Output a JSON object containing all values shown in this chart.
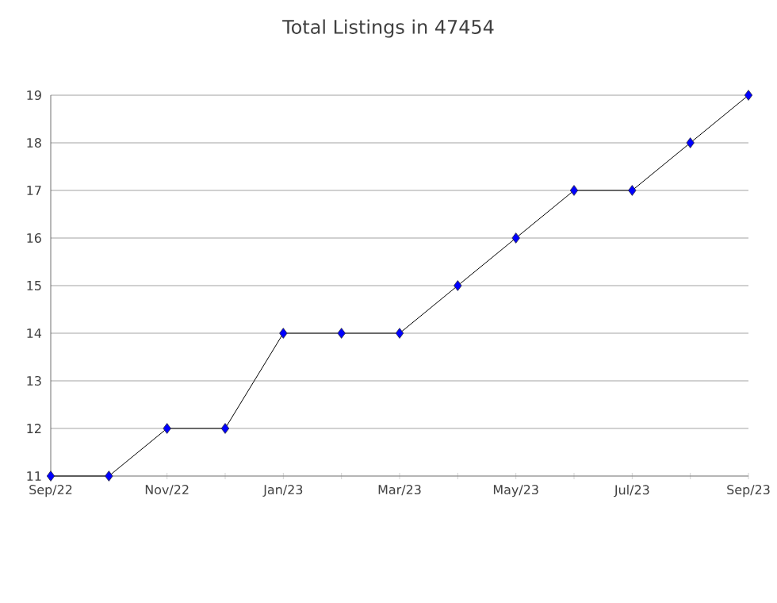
{
  "chart_data": {
    "type": "line",
    "title": "Total Listings in 47454",
    "categories": [
      "Sep/22",
      null,
      "Nov/22",
      null,
      "Jan/23",
      null,
      "Mar/23",
      null,
      "May/23",
      null,
      "Jul/23",
      null,
      "Sep/23"
    ],
    "values": [
      11,
      11,
      12,
      12,
      14,
      14,
      14,
      15,
      16,
      17,
      17,
      18,
      19
    ],
    "color": "#0000ff",
    "marker": "diamond",
    "grid": "y",
    "ylim": [
      11,
      19
    ],
    "yticks": [
      11,
      12,
      13,
      14,
      15,
      16,
      17,
      18,
      19
    ]
  }
}
